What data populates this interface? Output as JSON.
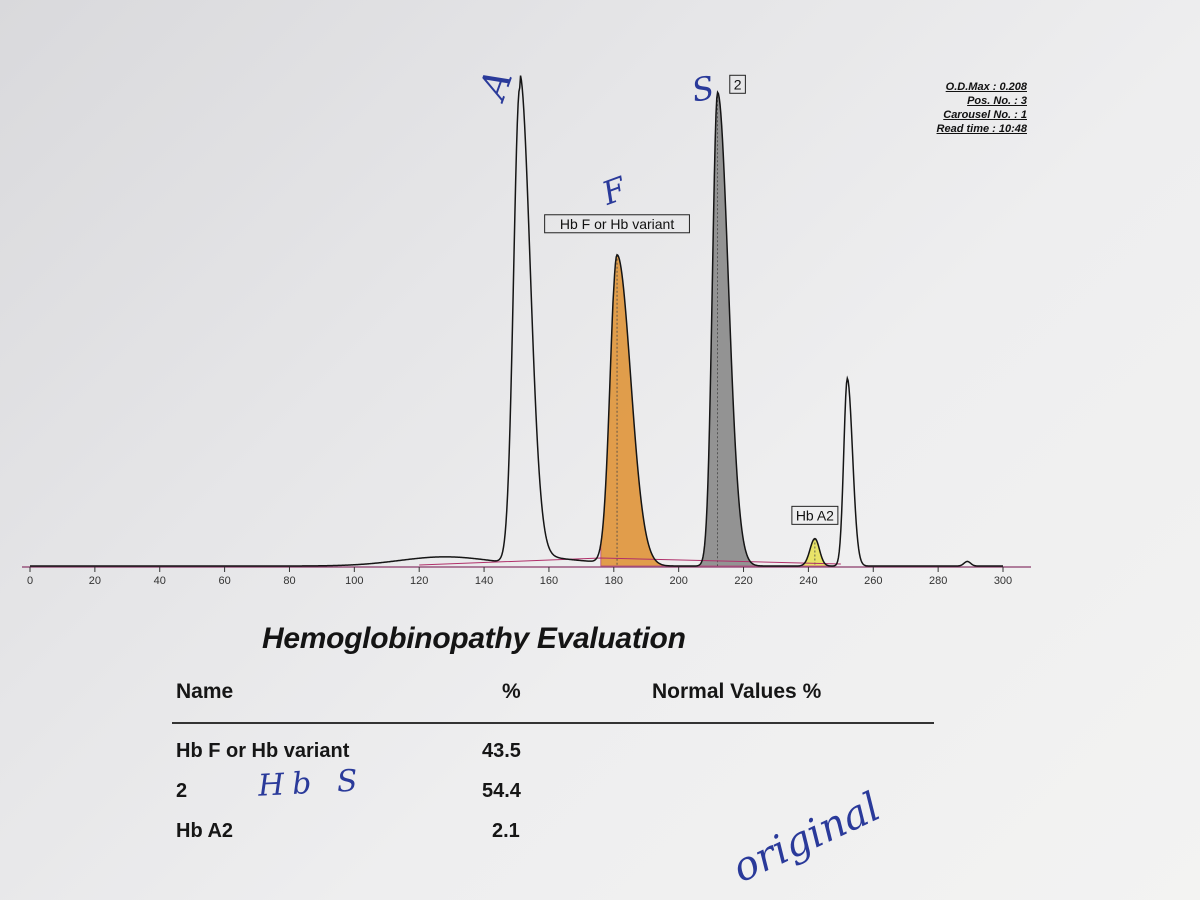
{
  "chart_data": {
    "type": "line",
    "x_ticks": [
      0,
      20,
      40,
      60,
      80,
      100,
      120,
      140,
      160,
      180,
      200,
      220,
      240,
      260,
      280,
      300
    ],
    "xlim": [
      0,
      300
    ],
    "peaks": [
      {
        "label": "",
        "x": 151,
        "height": 0.208,
        "fill": "none"
      },
      {
        "label": "Hb F or Hb variant",
        "x": 181,
        "height": 0.136,
        "fill": "#e0953a"
      },
      {
        "label": "2",
        "x": 212,
        "height": 0.207,
        "fill": "#8a8a8a"
      },
      {
        "label": "Hb A2",
        "x": 242,
        "height": 0.012,
        "fill": "#e8e25a"
      },
      {
        "label": "",
        "x": 252,
        "height": 0.082,
        "fill": "none"
      },
      {
        "label": "",
        "x": 289,
        "height": 0.002,
        "fill": "none"
      }
    ],
    "od_max": 0.208
  },
  "header": {
    "od_max": "O.D.Max : 0.208",
    "pos_no": "Pos. No. : 3",
    "carousel_no": "Carousel No. : 1",
    "read_time": "Read time : 10:48"
  },
  "report": {
    "title": "Hemoglobinopathy Evaluation",
    "columns": {
      "name": "Name",
      "percent": "%",
      "normal": "Normal Values %"
    },
    "rows": [
      {
        "name": "Hb F or Hb variant",
        "percent": "43.5"
      },
      {
        "name": "2",
        "percent": "54.4"
      },
      {
        "name": "Hb A2",
        "percent": "2.1"
      }
    ]
  },
  "handwriting": {
    "peak_a": "A",
    "peak_f": "F",
    "peak_s": "S",
    "row_note": "Hb S",
    "margin_note": "original"
  },
  "colors": {
    "trace": "#151515",
    "baseline": "#b0306a",
    "ink": "#2a3a9a"
  }
}
